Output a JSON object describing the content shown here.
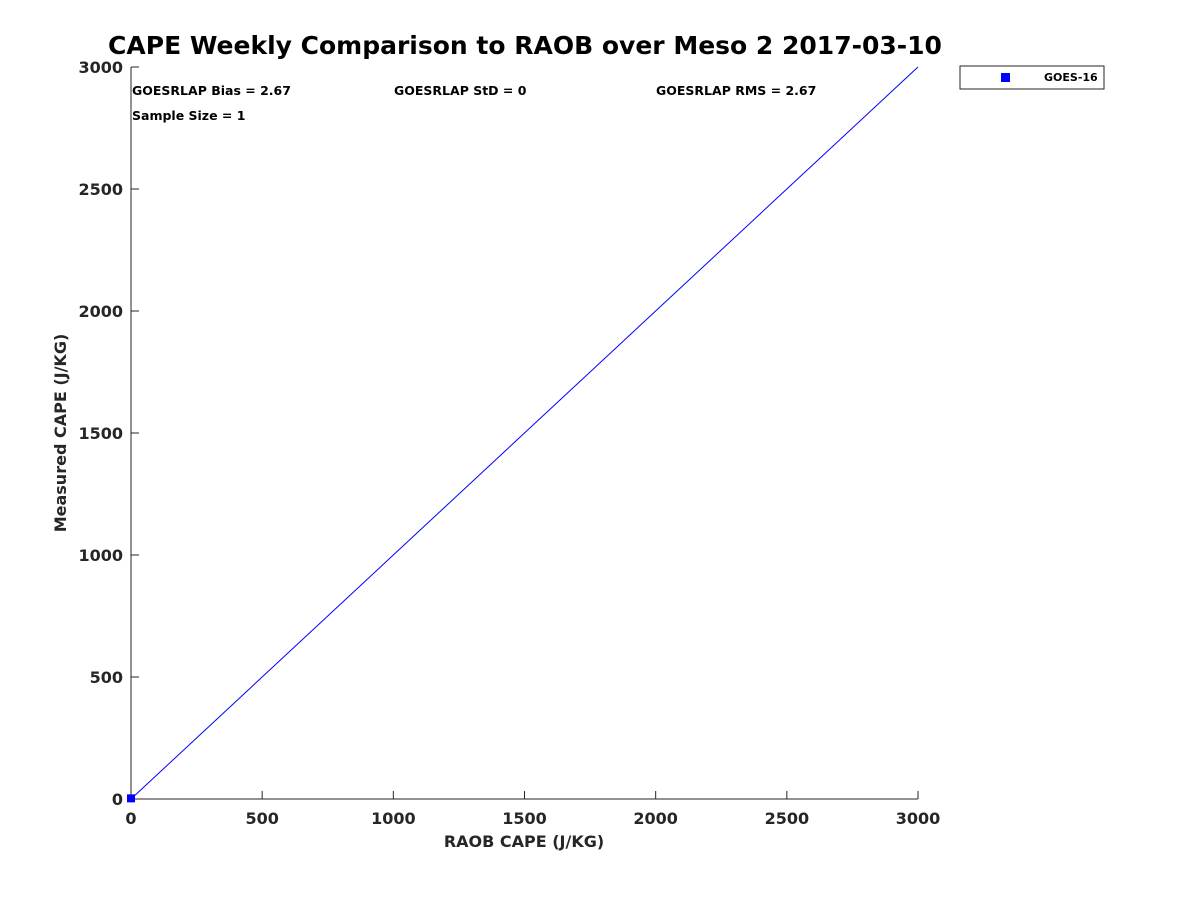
{
  "chart_data": {
    "type": "scatter",
    "title": "CAPE Weekly Comparison to RAOB over Meso 2 2017-03-10",
    "xlabel": "RAOB CAPE (J/KG)",
    "ylabel": "Measured CAPE (J/KG)",
    "xlim": [
      0,
      3000
    ],
    "ylim": [
      0,
      3000
    ],
    "xticks": [
      0,
      500,
      1000,
      1500,
      2000,
      2500,
      3000
    ],
    "yticks": [
      0,
      500,
      1000,
      1500,
      2000,
      2500,
      3000
    ],
    "grid": false,
    "legend_position": "outside-top-right",
    "reference_line": {
      "x": [
        0,
        3000
      ],
      "y": [
        0,
        3000
      ],
      "color": "#0000ff"
    },
    "series": [
      {
        "name": "GOES-16",
        "marker": "square",
        "color": "#0000ff",
        "points": [
          {
            "x": 0,
            "y": 2.67
          }
        ]
      }
    ],
    "annotations": [
      "GOESRLAP Bias = 2.67",
      "GOESRLAP StD = 0",
      "GOESRLAP RMS = 2.67",
      "Sample Size = 1"
    ]
  }
}
